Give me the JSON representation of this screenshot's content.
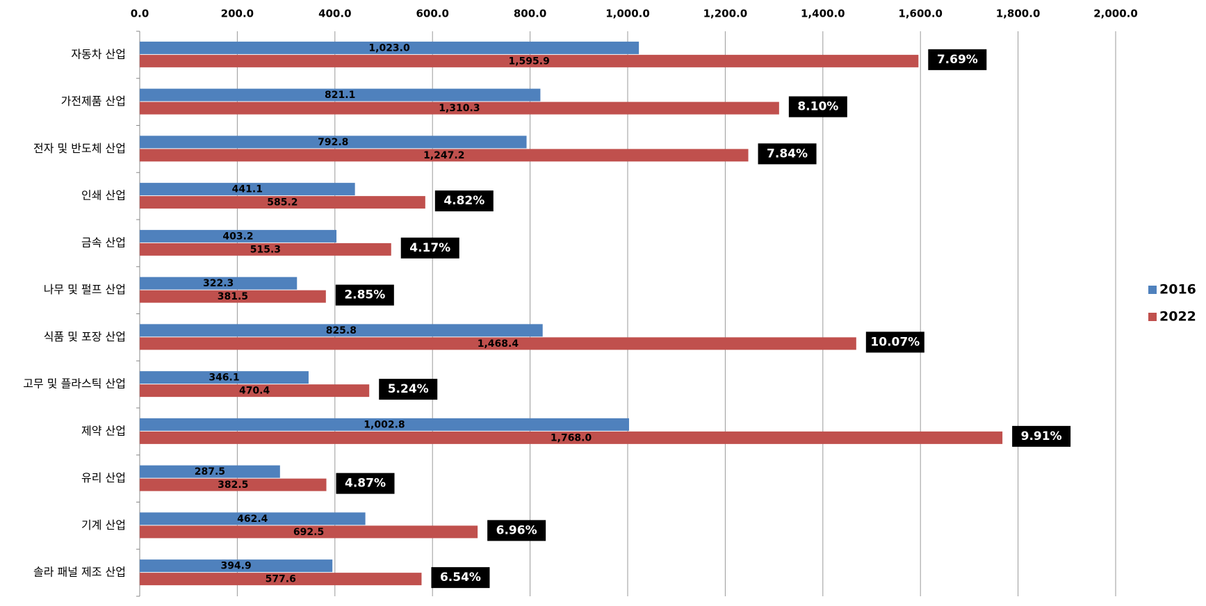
{
  "chart_data": {
    "type": "hbar",
    "categories": [
      "자동차 산업",
      "가전제품 산업",
      "전자 및 반도체 산업",
      "인쇄 산업",
      "금속 산업",
      "나무 및 펄프 산업",
      "식품 및 포장 산업",
      "고무 및 플라스틱 산업",
      "제약 산업",
      "유리 산업",
      "기계 산업",
      "솔라 패널 제조 산업"
    ],
    "series": [
      {
        "name": "2016",
        "color": "#4f81bd",
        "values": [
          1023.0,
          821.1,
          792.8,
          441.1,
          403.2,
          322.3,
          825.8,
          346.1,
          1002.8,
          287.5,
          462.4,
          394.9
        ],
        "value_labels": [
          "1,023.0",
          "821.1",
          "792.8",
          "441.1",
          "403.2",
          "322.3",
          "825.8",
          "346.1",
          "1,002.8",
          "287.5",
          "462.4",
          "394.9"
        ]
      },
      {
        "name": "2022",
        "color": "#c0504d",
        "values": [
          1595.9,
          1310.3,
          1247.2,
          585.2,
          515.3,
          381.5,
          1468.4,
          470.4,
          1768.0,
          382.5,
          692.5,
          577.6
        ],
        "value_labels": [
          "1,595.9",
          "1,310.3",
          "1,247.2",
          "585.2",
          "515.3",
          "381.5",
          "1,468.4",
          "470.4",
          "1,768.0",
          "382.5",
          "692.5",
          "577.6"
        ]
      }
    ],
    "annotations": [
      "7.69%",
      "8.10%",
      "7.84%",
      "4.82%",
      "4.17%",
      "2.85%",
      "10.07%",
      "5.24%",
      "9.91%",
      "4.87%",
      "6.96%",
      "6.54%"
    ],
    "xlim": [
      0,
      2000
    ],
    "xticks": [
      {
        "value": 0,
        "label": "0.0"
      },
      {
        "value": 200,
        "label": "200.0"
      },
      {
        "value": 400,
        "label": "400.0"
      },
      {
        "value": 600,
        "label": "600.0"
      },
      {
        "value": 800,
        "label": "800.0"
      },
      {
        "value": 1000,
        "label": "1,000.0"
      },
      {
        "value": 1200,
        "label": "1,200.0"
      },
      {
        "value": 1400,
        "label": "1,400.0"
      },
      {
        "value": 1600,
        "label": "1,600.0"
      },
      {
        "value": 1800,
        "label": "1,800.0"
      },
      {
        "value": 2000,
        "label": "2,000.0"
      }
    ],
    "grid": true,
    "legend": "right"
  }
}
